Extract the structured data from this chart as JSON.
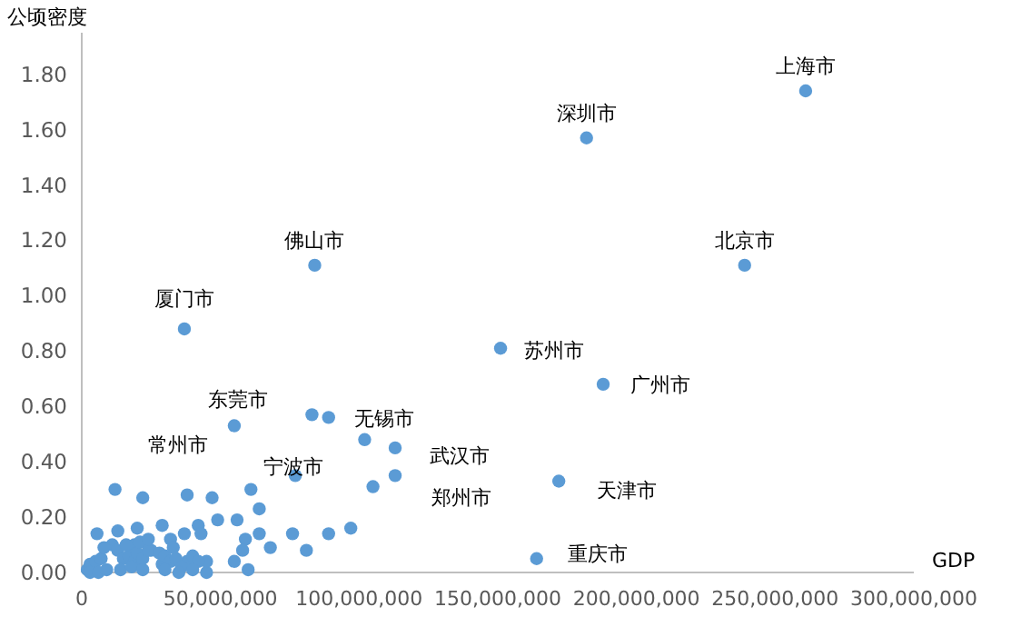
{
  "chart_data": {
    "type": "scatter",
    "xlabel": "GDP",
    "ylabel": "公顷密度",
    "xlim": [
      0,
      300000000
    ],
    "xticks": [
      {
        "value": 0,
        "label": "0"
      },
      {
        "value": 50000000,
        "label": "50,000,000"
      },
      {
        "value": 100000000,
        "label": "100,000,000"
      },
      {
        "value": 150000000,
        "label": "150,000,000"
      },
      {
        "value": 200000000,
        "label": "200,000,000"
      },
      {
        "value": 250000000,
        "label": "250,000,000"
      },
      {
        "value": 300000000,
        "label": "300,000,000"
      }
    ],
    "ylim": [
      0,
      1.95
    ],
    "yticks": [
      {
        "value": 0,
        "label": "0.00"
      },
      {
        "value": 0.2,
        "label": "0.20"
      },
      {
        "value": 0.4,
        "label": "0.40"
      },
      {
        "value": 0.6,
        "label": "0.60"
      },
      {
        "value": 0.8,
        "label": "0.80"
      },
      {
        "value": 1,
        "label": "1.00"
      },
      {
        "value": 1.2,
        "label": "1.20"
      },
      {
        "value": 1.4,
        "label": "1.40"
      },
      {
        "value": 1.6,
        "label": "1.60"
      },
      {
        "value": 1.8,
        "label": "1.80"
      }
    ],
    "grid": false,
    "marker": "circle",
    "series": [
      {
        "color": "#5b9bd5",
        "x": [
          261000000,
          182000000,
          239000000,
          84000000,
          37000000,
          151000000,
          188000000,
          172000000,
          164000000,
          55000000,
          102000000,
          77000000,
          113000000,
          113000000,
          38000000,
          83000000,
          89000000,
          105000000,
          12000000,
          22000000,
          47000000,
          61000000,
          64000000,
          49000000,
          56000000,
          29000000,
          20000000,
          13000000,
          5500000,
          42000000,
          37000000,
          32000000,
          43000000,
          59000000,
          64000000,
          76000000,
          89000000,
          97000000,
          81000000,
          68000000,
          58000000,
          55000000,
          60000000,
          45000000,
          45000000,
          38000000,
          11000000,
          19000000,
          25000000,
          2000000,
          3000000,
          5000000,
          7000000,
          13000000,
          15000000,
          17000000,
          19000000,
          20000000,
          21000000,
          22000000,
          24000000,
          28000000,
          29000000,
          30000000,
          32000000,
          34000000,
          36000000,
          40000000,
          42000000,
          3000000,
          6000000,
          9000000,
          14000000,
          18000000,
          22000000,
          30000000,
          35000000,
          40000000,
          8000000,
          16000000,
          24000000,
          33000000
        ],
        "values": [
          1.74,
          1.57,
          1.11,
          1.11,
          0.88,
          0.81,
          0.68,
          0.33,
          0.05,
          0.53,
          0.48,
          0.35,
          0.45,
          0.35,
          0.28,
          0.57,
          0.56,
          0.31,
          0.3,
          0.27,
          0.27,
          0.3,
          0.23,
          0.19,
          0.19,
          0.17,
          0.16,
          0.15,
          0.14,
          0.17,
          0.14,
          0.12,
          0.14,
          0.12,
          0.14,
          0.14,
          0.14,
          0.16,
          0.08,
          0.09,
          0.08,
          0.04,
          0.01,
          0.0,
          0.04,
          0.04,
          0.1,
          0.1,
          0.08,
          0.01,
          0.03,
          0.04,
          0.05,
          0.08,
          0.05,
          0.06,
          0.04,
          0.07,
          0.11,
          0.05,
          0.08,
          0.07,
          0.03,
          0.06,
          0.04,
          0.05,
          0.02,
          0.06,
          0.04,
          0.0,
          0.0,
          0.01,
          0.01,
          0.02,
          0.01,
          0.01,
          0.0,
          0.01,
          0.09,
          0.1,
          0.12,
          0.09
        ]
      }
    ],
    "annotations": [
      {
        "text": "上海市",
        "x": 261000000,
        "y": 1.74
      },
      {
        "text": "深圳市",
        "x": 182000000,
        "y": 1.57
      },
      {
        "text": "北京市",
        "x": 239000000,
        "y": 1.11
      },
      {
        "text": "佛山市",
        "x": 84000000,
        "y": 1.11
      },
      {
        "text": "厦门市",
        "x": 37000000,
        "y": 0.88
      },
      {
        "text": "苏州市",
        "x": 151000000,
        "y": 0.81
      },
      {
        "text": "广州市",
        "x": 188000000,
        "y": 0.68
      },
      {
        "text": "天津市",
        "x": 172000000,
        "y": 0.33
      },
      {
        "text": "重庆市",
        "x": 164000000,
        "y": 0.05
      },
      {
        "text": "东莞市",
        "x": 55000000,
        "y": 0.53
      },
      {
        "text": "无锡市",
        "x": 102000000,
        "y": 0.48
      },
      {
        "text": "宁波市",
        "x": 77000000,
        "y": 0.35
      },
      {
        "text": "武汉市",
        "x": 113000000,
        "y": 0.45
      },
      {
        "text": "郑州市",
        "x": 113000000,
        "y": 0.35
      },
      {
        "text": "常州市",
        "x": 38000000,
        "y": 0.28
      }
    ]
  }
}
